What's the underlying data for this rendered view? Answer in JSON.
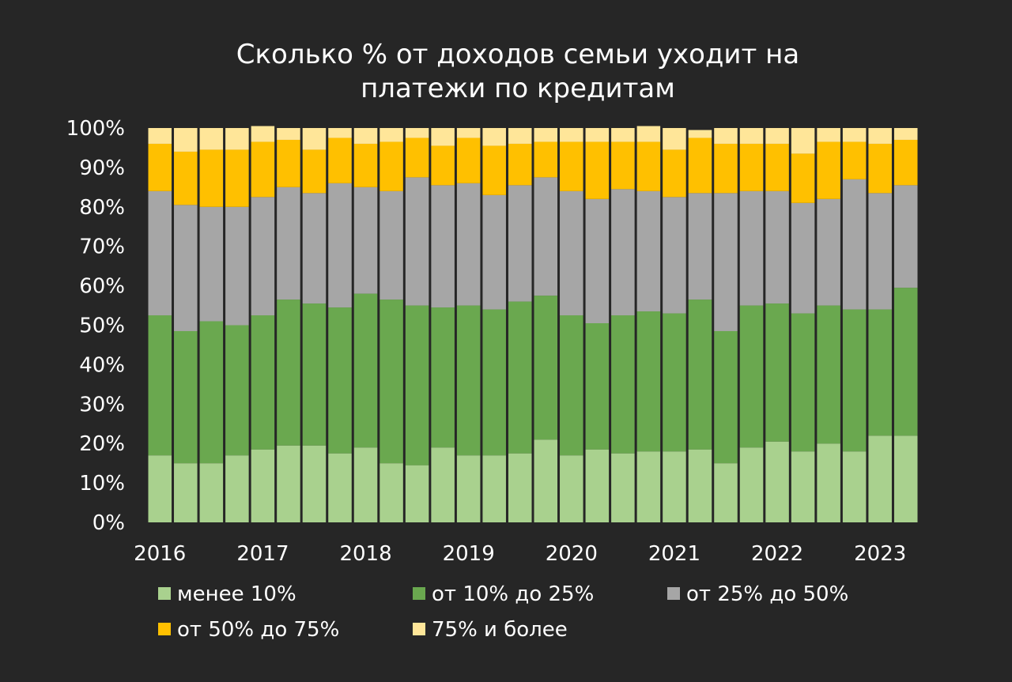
{
  "chart_data": {
    "type": "bar",
    "stacked": true,
    "title": [
      "Сколько % от доходов семьи уходит на",
      "платежи по кредитам"
    ],
    "ylim": [
      0,
      100
    ],
    "yticks": [
      "0%",
      "10%",
      "20%",
      "30%",
      "40%",
      "50%",
      "60%",
      "70%",
      "80%",
      "90%",
      "100%"
    ],
    "year_labels": [
      "2016",
      "2017",
      "2018",
      "2019",
      "2020",
      "2021",
      "2022",
      "2023"
    ],
    "bars_per_year": 4,
    "categories": [
      "2016 Q1",
      "2016 Q2",
      "2016 Q3",
      "2016 Q4",
      "2017 Q1",
      "2017 Q2",
      "2017 Q3",
      "2017 Q4",
      "2018 Q1",
      "2018 Q2",
      "2018 Q3",
      "2018 Q4",
      "2019 Q1",
      "2019 Q2",
      "2019 Q3",
      "2019 Q4",
      "2020 Q1",
      "2020 Q2",
      "2020 Q3",
      "2020 Q4",
      "2021 Q1",
      "2021 Q2",
      "2021 Q3",
      "2021 Q4",
      "2022 Q1",
      "2022 Q2",
      "2022 Q3",
      "2022 Q4",
      "2023 Q1",
      "2023 Q2"
    ],
    "grid": false,
    "legend_position": "bottom",
    "series": [
      {
        "name": "менее 10%",
        "color": "#a9d18e",
        "values": [
          17,
          15,
          15,
          17,
          18.5,
          19.5,
          19.5,
          17.5,
          19,
          15,
          14.5,
          19,
          17,
          17,
          17.5,
          21,
          17,
          18.5,
          17.5,
          18,
          18,
          18.5,
          15,
          19,
          20.5,
          18,
          20,
          18,
          22,
          22
        ]
      },
      {
        "name": "от 10% до 25%",
        "color": "#6aa84f",
        "values": [
          35.5,
          33.5,
          36,
          33,
          34,
          37,
          36,
          37,
          39,
          41.5,
          40.5,
          35.5,
          38,
          37,
          38.5,
          36.5,
          35.5,
          32,
          35,
          35.5,
          35,
          38,
          33.5,
          36,
          35,
          35,
          35,
          36,
          32,
          37.5
        ]
      },
      {
        "name": "от 25% до 50%",
        "color": "#a6a6a6",
        "values": [
          31.5,
          32,
          29,
          30,
          30,
          28.5,
          28,
          31.5,
          27,
          27.5,
          32.5,
          31,
          31,
          29,
          29.5,
          30,
          31.5,
          31.5,
          32,
          30.5,
          29.5,
          27,
          35,
          29,
          28.5,
          28,
          27,
          33,
          29.5,
          26
        ]
      },
      {
        "name": "от 50% до 75%",
        "color": "#ffc000",
        "values": [
          12,
          13.5,
          14.5,
          14.5,
          14,
          12,
          11,
          11.5,
          11,
          12.5,
          10,
          10,
          11.5,
          12.5,
          10.5,
          9,
          12.5,
          14.5,
          12,
          12.5,
          12,
          14,
          12.5,
          12,
          12,
          12.5,
          14.5,
          9.5,
          12.5,
          11.5
        ]
      },
      {
        "name": "75% и более",
        "color": "#ffe699",
        "values": [
          4,
          6,
          5.5,
          5.5,
          4,
          3,
          5.5,
          2.5,
          4,
          3.5,
          2.5,
          4.5,
          2.5,
          4.5,
          4,
          3.5,
          3.5,
          3.5,
          3.5,
          4,
          5.5,
          2,
          4,
          4,
          4,
          6.5,
          3.5,
          3.5,
          4,
          3
        ]
      }
    ]
  }
}
